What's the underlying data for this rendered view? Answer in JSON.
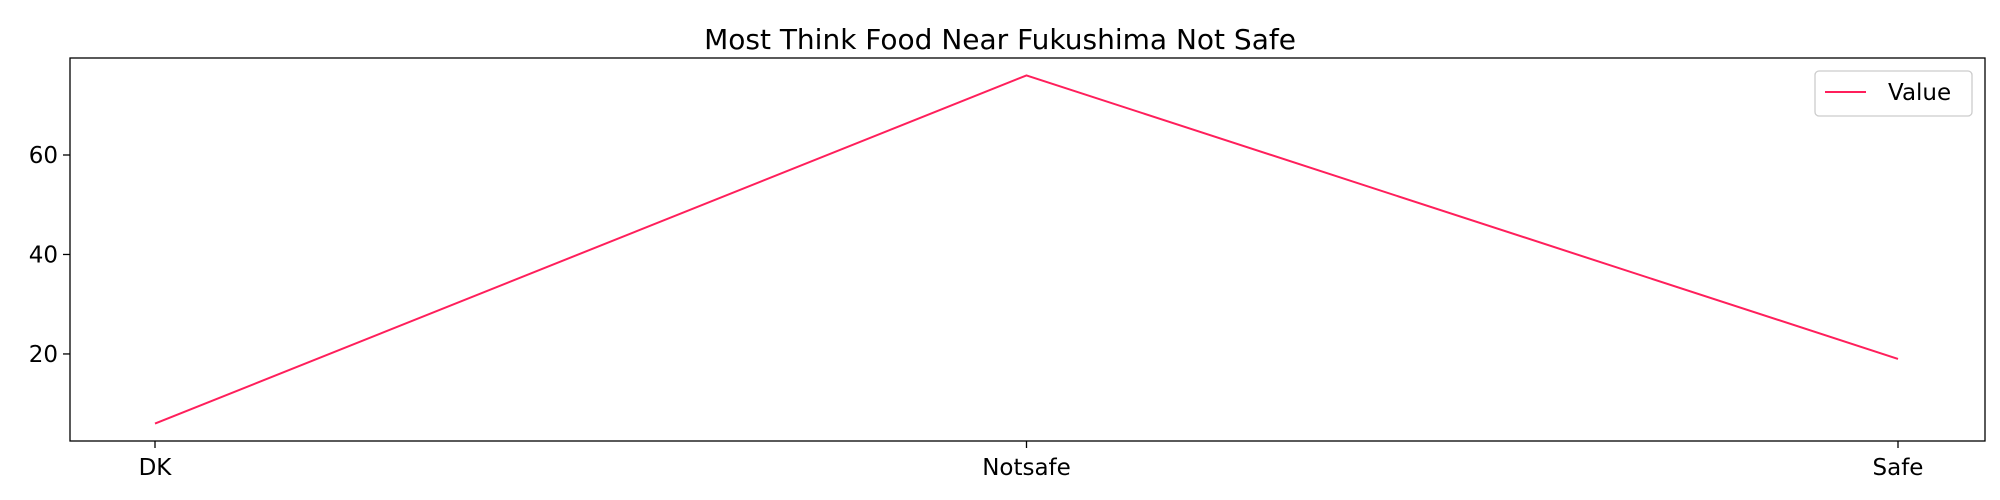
{
  "chart_data": {
    "type": "line",
    "title": "Most Think Food Near Fukushima Not Safe",
    "xlabel": "",
    "ylabel": "",
    "categories": [
      "DK",
      "Notsafe",
      "Safe"
    ],
    "series": [
      {
        "name": "Value",
        "values": [
          6,
          76,
          19
        ],
        "color": "#ff1f5b"
      }
    ],
    "ylim": [
      2.5,
      79.5
    ],
    "yticks": [
      20,
      40,
      60
    ],
    "grid": false,
    "legend_position": "top-right"
  }
}
